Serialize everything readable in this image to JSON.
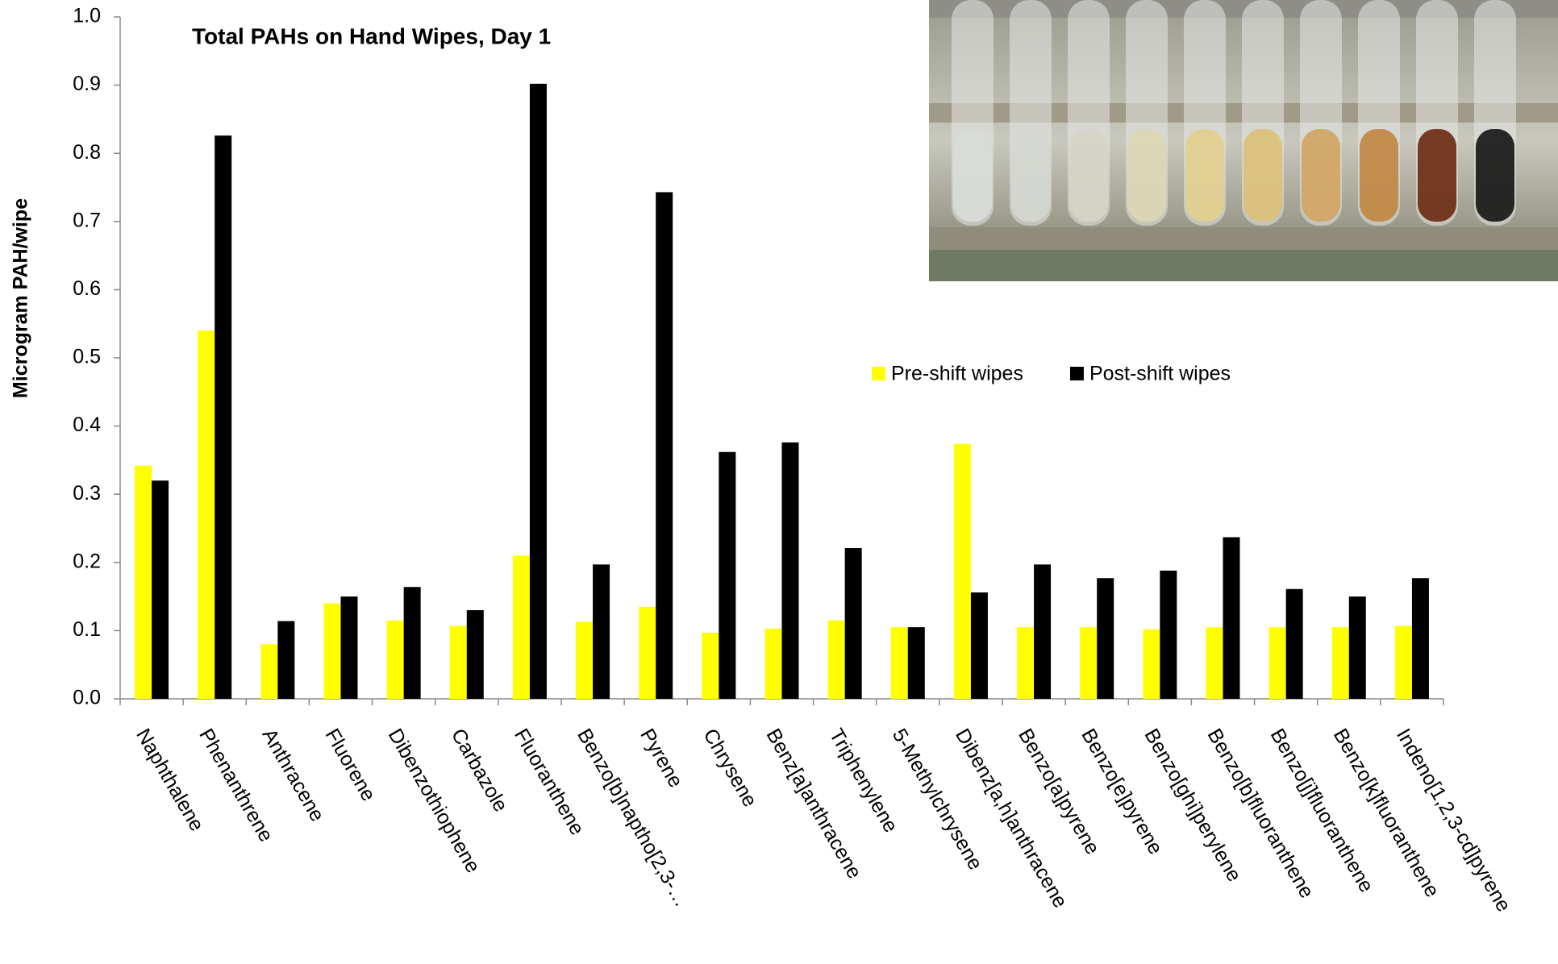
{
  "chart_data": {
    "type": "bar",
    "title": "Total PAHs on Hand Wipes, Day 1",
    "y_label": "Microgram PAH/wipe",
    "categories": [
      "Naphthalene",
      "Phenanthrene",
      "Anthracene",
      "Fluorene",
      "Dibenzothiophene",
      "Carbazole",
      "Fluoranthene",
      "Benzo[b]naptho[2,3-…",
      "Pyrene",
      "Chrysene",
      "Benz[a]anthracene",
      "Triphenylene",
      "5-Methylchrysene",
      "Dibenz[a,h]anthracene",
      "Benzo[a]pyrene",
      "Benzo[e]pyrene",
      "Benzo[ghi]perylene",
      "Benzo[b]fluoranthene",
      "Benzo[j]fluoranthene",
      "Benzo[k]fluoranthene",
      "Indeno[1,2,3-cd]pyrene"
    ],
    "series": [
      {
        "name": "Pre-shift wipes",
        "color": "#ffff00",
        "values": [
          0.342,
          0.54,
          0.08,
          0.14,
          0.115,
          0.107,
          0.21,
          0.113,
          0.135,
          0.097,
          0.103,
          0.115,
          0.105,
          0.374,
          0.105,
          0.105,
          0.102,
          0.105,
          0.105,
          0.105,
          0.107
        ]
      },
      {
        "name": "Post-shift wipes",
        "color": "#000000",
        "values": [
          0.32,
          0.826,
          0.114,
          0.15,
          0.164,
          0.13,
          0.902,
          0.197,
          0.743,
          0.362,
          0.376,
          0.221,
          0.105,
          0.156,
          0.197,
          0.177,
          0.188,
          0.237,
          0.161,
          0.15,
          0.177
        ]
      }
    ],
    "ylim": [
      0,
      1.0
    ],
    "yticks": [
      {
        "value": 0,
        "label": "0.0"
      },
      0.1,
      0.2,
      0.3,
      0.4,
      0.5,
      0.6,
      0.7,
      0.8,
      0.9,
      {
        "value": 1.0,
        "label": "1.0"
      }
    ],
    "grid": false,
    "legend": "right"
  }
}
